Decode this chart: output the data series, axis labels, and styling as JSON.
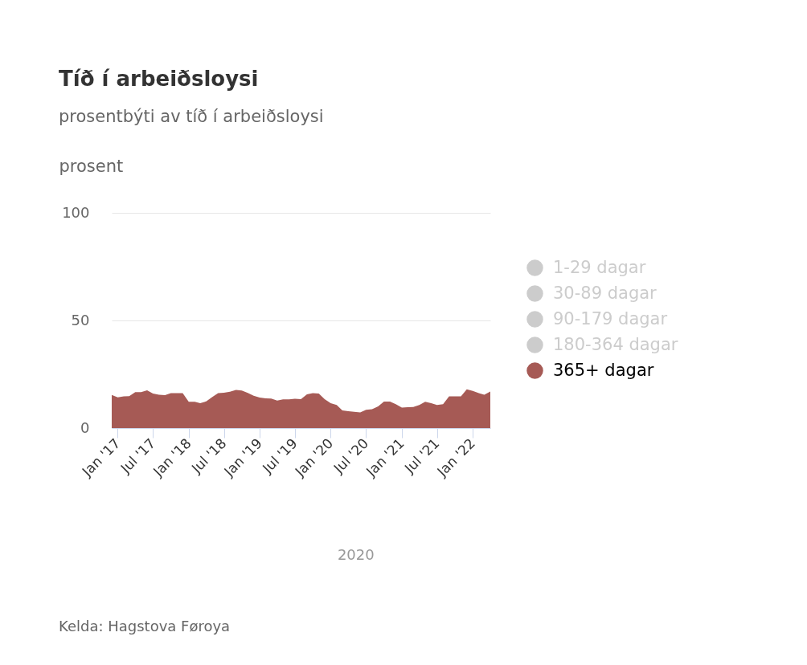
{
  "chart_data": {
    "type": "area",
    "title": "Tíð í arbeiðsloysi",
    "subtitle": "prosentbýti av tíð í arbeiðsloysi",
    "ylabel": "prosent",
    "x": [
      "2016-12",
      "2017-01",
      "2017-02",
      "2017-03",
      "2017-04",
      "2017-05",
      "2017-06",
      "2017-07",
      "2017-08",
      "2017-09",
      "2017-10",
      "2017-11",
      "2017-12",
      "2018-01",
      "2018-02",
      "2018-03",
      "2018-04",
      "2018-05",
      "2018-06",
      "2018-07",
      "2018-08",
      "2018-09",
      "2018-10",
      "2018-11",
      "2018-12",
      "2019-01",
      "2019-02",
      "2019-03",
      "2019-04",
      "2019-05",
      "2019-06",
      "2019-07",
      "2019-08",
      "2019-09",
      "2019-10",
      "2019-11",
      "2019-12",
      "2020-01",
      "2020-02",
      "2020-03",
      "2020-04",
      "2020-05",
      "2020-06",
      "2020-07",
      "2020-08",
      "2020-09",
      "2020-10",
      "2020-11",
      "2020-12",
      "2021-01",
      "2021-02",
      "2021-03",
      "2021-04",
      "2021-05",
      "2021-06",
      "2021-07",
      "2021-08",
      "2021-09",
      "2021-10",
      "2021-11",
      "2021-12",
      "2022-01",
      "2022-02",
      "2022-03",
      "2022-04"
    ],
    "series": [
      {
        "name": "1-29 dagar",
        "color": "#cccccc",
        "values": [
          null,
          null,
          null,
          null,
          null,
          null,
          null,
          null,
          null,
          null,
          null,
          null,
          null,
          null,
          null,
          null,
          null,
          null,
          null,
          null,
          null,
          null,
          null,
          null,
          null,
          null,
          null,
          null,
          null,
          null,
          null,
          null,
          null,
          null,
          null,
          null,
          null,
          null,
          null,
          null,
          null,
          null,
          null,
          null,
          null,
          null,
          null,
          null,
          null,
          null,
          null,
          null,
          null,
          null,
          null,
          null,
          null,
          null,
          null,
          null,
          null,
          null,
          null,
          null,
          null
        ]
      },
      {
        "name": "30-89 dagar",
        "color": "#cccccc",
        "values": [
          null,
          null,
          null,
          null,
          null,
          null,
          null,
          null,
          null,
          null,
          null,
          null,
          null,
          null,
          null,
          null,
          null,
          null,
          null,
          null,
          null,
          null,
          null,
          null,
          null,
          null,
          null,
          null,
          null,
          null,
          null,
          null,
          null,
          null,
          null,
          null,
          null,
          null,
          null,
          null,
          null,
          null,
          null,
          null,
          null,
          null,
          null,
          null,
          null,
          null,
          null,
          null,
          null,
          null,
          null,
          null,
          null,
          null,
          null,
          null,
          null,
          null,
          null,
          null,
          null
        ]
      },
      {
        "name": "90-179 dagar",
        "color": "#cccccc",
        "values": [
          null,
          null,
          null,
          null,
          null,
          null,
          null,
          null,
          null,
          null,
          null,
          null,
          null,
          null,
          null,
          null,
          null,
          null,
          null,
          null,
          null,
          null,
          null,
          null,
          null,
          null,
          null,
          null,
          null,
          null,
          null,
          null,
          null,
          null,
          null,
          null,
          null,
          null,
          null,
          null,
          null,
          null,
          null,
          null,
          null,
          null,
          null,
          null,
          null,
          null,
          null,
          null,
          null,
          null,
          null,
          null,
          null,
          null,
          null,
          null,
          null,
          null,
          null,
          null,
          null
        ]
      },
      {
        "name": "180-364 dagar",
        "color": "#cccccc",
        "values": [
          null,
          null,
          null,
          null,
          null,
          null,
          null,
          null,
          null,
          null,
          null,
          null,
          null,
          null,
          null,
          null,
          null,
          null,
          null,
          null,
          null,
          null,
          null,
          null,
          null,
          null,
          null,
          null,
          null,
          null,
          null,
          null,
          null,
          null,
          null,
          null,
          null,
          null,
          null,
          null,
          null,
          null,
          null,
          null,
          null,
          null,
          null,
          null,
          null,
          null,
          null,
          null,
          null,
          null,
          null,
          null,
          null,
          null,
          null,
          null,
          null,
          null,
          null,
          null,
          null
        ]
      },
      {
        "name": "365+ dagar",
        "color": "#a65a55",
        "values": [
          15.4,
          14.3,
          14.7,
          14.8,
          16.7,
          16.7,
          17.5,
          16.0,
          15.5,
          15.3,
          16.2,
          16.2,
          16.2,
          12.2,
          12.2,
          11.6,
          12.4,
          14.4,
          16.2,
          16.4,
          16.9,
          17.7,
          17.4,
          16.3,
          15.0,
          14.2,
          13.8,
          13.7,
          12.8,
          13.3,
          13.3,
          13.6,
          13.4,
          15.7,
          16.2,
          16.0,
          13.4,
          11.6,
          10.7,
          8.2,
          7.8,
          7.6,
          7.3,
          8.5,
          8.8,
          10.1,
          12.3,
          12.3,
          11.1,
          9.5,
          9.7,
          9.8,
          10.7,
          12.2,
          11.6,
          10.7,
          11.1,
          14.7,
          14.7,
          14.7,
          18.0,
          17.3,
          16.2,
          15.5,
          17.0
        ]
      }
    ],
    "xlim": [
      "2016-12",
      "2022-04"
    ],
    "xticks": [
      {
        "value": "2017-01",
        "label": "Jan '17"
      },
      {
        "value": "2017-07",
        "label": "Jul '17"
      },
      {
        "value": "2018-01",
        "label": "Jan '18"
      },
      {
        "value": "2018-07",
        "label": "Jul '18"
      },
      {
        "value": "2019-01",
        "label": "Jan '19"
      },
      {
        "value": "2019-07",
        "label": "Jul '19"
      },
      {
        "value": "2020-01",
        "label": "Jan '20"
      },
      {
        "value": "2020-07",
        "label": "Jul '20"
      },
      {
        "value": "2021-01",
        "label": "Jan '21"
      },
      {
        "value": "2021-07",
        "label": "Jul '21"
      },
      {
        "value": "2022-01",
        "label": "Jan '22"
      }
    ],
    "ylim": [
      0,
      100
    ],
    "yticks": [
      0,
      50,
      100
    ],
    "grid": "y",
    "legend": "right",
    "annotations": [
      "2020",
      "Kelda: Hagstova Føroya"
    ]
  }
}
